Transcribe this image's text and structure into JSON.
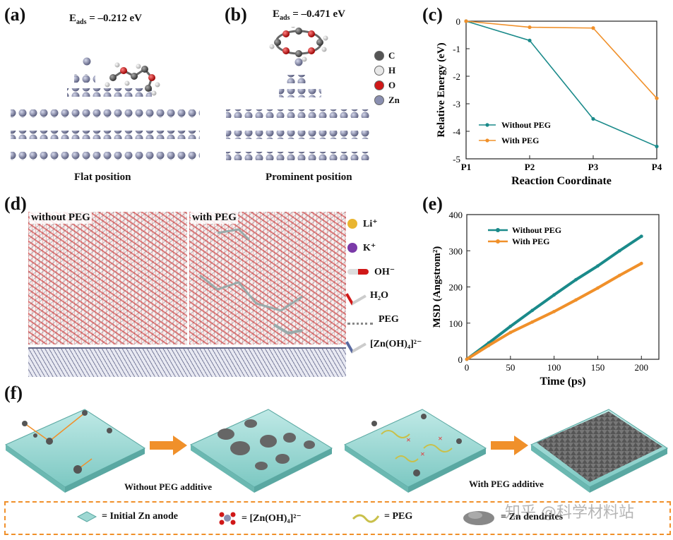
{
  "panels": {
    "a": {
      "label": "(a)",
      "energy_prefix": "E",
      "energy_sub": "ads",
      "energy_value": " = –0.212 eV",
      "caption": "Flat position"
    },
    "b": {
      "label": "(b)",
      "energy_prefix": "E",
      "energy_sub": "ads",
      "energy_value": " = –0.471 eV",
      "caption": "Prominent position"
    },
    "atoms_legend": [
      {
        "symbol": "C",
        "color": "#555555"
      },
      {
        "symbol": "H",
        "color": "#e8e8e8"
      },
      {
        "symbol": "O",
        "color": "#d01818"
      },
      {
        "symbol": "Zn",
        "color": "#8a8fb0"
      }
    ],
    "d": {
      "label": "(d)",
      "left_title": "without PEG",
      "right_title": "with PEG"
    },
    "species_legend": [
      {
        "name": "Li⁺",
        "color": "#e9b530"
      },
      {
        "name": "K⁺",
        "color": "#7a3aa8"
      },
      {
        "name": "OH⁻",
        "color": "#d01818"
      },
      {
        "name": "H₂O",
        "color": "#d01818"
      },
      {
        "name": "PEG",
        "color": "#999999"
      },
      {
        "name": "[Zn(OH)₄]²⁻",
        "color": "#5a6aa0"
      }
    ],
    "f": {
      "label": "(f)",
      "without_caption": "Without PEG additive",
      "with_caption": "With PEG additive",
      "legend": {
        "anode": "= Initial Zn anode",
        "zincate": "= [Zn(OH)₄]²⁻",
        "peg": "= PEG",
        "dendrite": "= Zn dendrites"
      }
    },
    "watermark": "知乎 @科学材料站"
  },
  "chart_data": [
    {
      "id": "c",
      "label": "(c)",
      "type": "line",
      "categories": [
        "P1",
        "P2",
        "P3",
        "P4"
      ],
      "series": [
        {
          "name": "Without PEG",
          "color": "#1a8a8a",
          "values": [
            0,
            -0.7,
            -3.55,
            -4.55
          ]
        },
        {
          "name": "With PEG",
          "color": "#f0902a",
          "values": [
            0,
            -0.22,
            -0.25,
            -2.8
          ]
        }
      ],
      "xlabel": "Reaction Coordinate",
      "ylabel": "Relative Energy (eV)",
      "ylim": [
        -5,
        0
      ],
      "yticks": [
        0,
        -1,
        -2,
        -3,
        -4,
        -5
      ],
      "legend": "bottom-left"
    },
    {
      "id": "e",
      "label": "(e)",
      "type": "line",
      "series": [
        {
          "name": "Without PEG",
          "color": "#1a8a8a",
          "x": [
            0,
            25,
            50,
            75,
            100,
            125,
            150,
            175,
            200
          ],
          "values": [
            0,
            45,
            91,
            135,
            178,
            220,
            258,
            300,
            340
          ]
        },
        {
          "name": "With PEG",
          "color": "#f0902a",
          "x": [
            0,
            25,
            50,
            75,
            100,
            125,
            150,
            175,
            200
          ],
          "values": [
            0,
            38,
            74,
            103,
            132,
            164,
            197,
            232,
            265
          ]
        }
      ],
      "xlabel": "Time (ps)",
      "ylabel": "MSD (Angstrom²)",
      "xlim": [
        0,
        220
      ],
      "ylim": [
        0,
        400
      ],
      "xticks": [
        0,
        50,
        100,
        150,
        200
      ],
      "yticks": [
        0,
        100,
        200,
        300,
        400
      ],
      "legend": "top-left"
    }
  ]
}
